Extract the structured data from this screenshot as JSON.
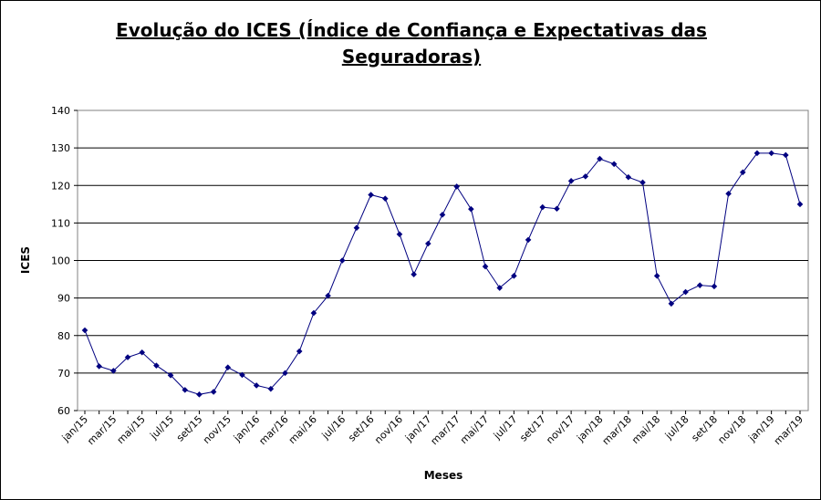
{
  "chart_data": {
    "type": "line",
    "title": "Evolução do ICES (Índice de Confiança e Expectativas  das Seguradoras)",
    "xlabel": "Meses",
    "ylabel": "ICES",
    "ylim": [
      60,
      140
    ],
    "yticks": [
      60,
      70,
      80,
      90,
      100,
      110,
      120,
      130,
      140
    ],
    "grid": "horizontal",
    "x": [
      "jan/15",
      "fev/15",
      "mar/15",
      "abr/15",
      "mai/15",
      "jun/15",
      "jul/15",
      "ago/15",
      "set/15",
      "out/15",
      "nov/15",
      "dez/15",
      "jan/16",
      "fev/16",
      "mar/16",
      "abr/16",
      "mai/16",
      "jun/16",
      "jul/16",
      "ago/16",
      "set/16",
      "out/16",
      "nov/16",
      "dez/16",
      "jan/17",
      "fev/17",
      "mar/17",
      "abr/17",
      "mai/17",
      "jun/17",
      "jul/17",
      "ago/17",
      "set/17",
      "out/17",
      "nov/17",
      "dez/17",
      "jan/18",
      "fev/18",
      "mar/18",
      "abr/18",
      "mai/18",
      "jun/18",
      "jul/18",
      "ago/18",
      "set/18",
      "out/18",
      "nov/18",
      "dez/18",
      "jan/19",
      "fev/19",
      "mar/19"
    ],
    "xtick_labels": [
      "jan/15",
      "mar/15",
      "mai/15",
      "jul/15",
      "set/15",
      "nov/15",
      "jan/16",
      "mar/16",
      "mai/16",
      "jul/16",
      "set/16",
      "nov/16",
      "jan/17",
      "mar/17",
      "mai/17",
      "jul/17",
      "set/17",
      "nov/17",
      "jan/18",
      "mar/18",
      "mai/18",
      "jul/18",
      "set/18",
      "nov/18",
      "jan/19",
      "mar/19"
    ],
    "series": [
      {
        "values": [
          81.4,
          71.8,
          70.6,
          74.2,
          75.5,
          72.0,
          69.4,
          65.5,
          64.3,
          65.0,
          71.5,
          69.5,
          66.7,
          65.8,
          70.0,
          75.8,
          86.0,
          90.6,
          100.0,
          108.7,
          117.5,
          116.5,
          107.0,
          96.3,
          104.5,
          112.2,
          119.7,
          113.7,
          98.4,
          92.7,
          95.9,
          105.5,
          114.2,
          113.8,
          121.2,
          122.4,
          127.1,
          125.7,
          122.2,
          120.8,
          95.9,
          88.5,
          91.6,
          93.4,
          93.1,
          117.8,
          123.5,
          128.6,
          128.6,
          128.1,
          115.0
        ],
        "color": "#000080"
      }
    ]
  }
}
